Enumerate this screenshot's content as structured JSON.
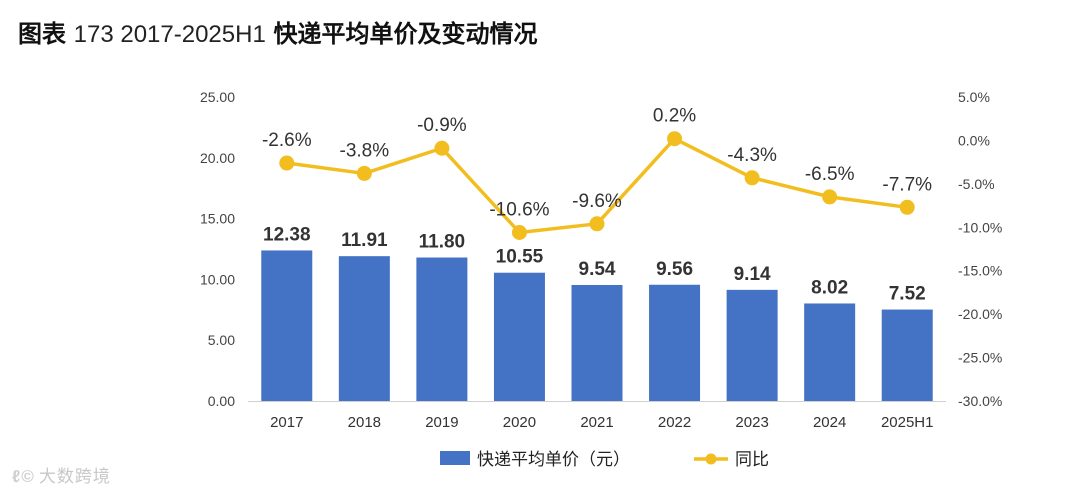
{
  "title": {
    "label": "图表",
    "number": "173 2017-2025H1",
    "text": "快递平均单价及变动情况"
  },
  "watermark": {
    "logo": "ℓ©",
    "text": "大数跨境"
  },
  "chart_data": {
    "type": "bar",
    "categories": [
      "2017",
      "2018",
      "2019",
      "2020",
      "2021",
      "2022",
      "2023",
      "2024",
      "2025H1"
    ],
    "series": [
      {
        "name": "快递平均单价（元）",
        "type": "bar",
        "axis": "left",
        "color": "#4472C4",
        "values": [
          12.38,
          11.91,
          11.8,
          10.55,
          9.54,
          9.56,
          9.14,
          8.02,
          7.52
        ],
        "labels": [
          "12.38",
          "11.91",
          "11.80",
          "10.55",
          "9.54",
          "9.56",
          "9.14",
          "8.02",
          "7.52"
        ]
      },
      {
        "name": "同比",
        "type": "line",
        "axis": "right",
        "color": "#F2BE1F",
        "values": [
          -2.6,
          -3.8,
          -0.9,
          -10.6,
          -9.6,
          0.2,
          -4.3,
          -6.5,
          -7.7
        ],
        "labels": [
          "-2.6%",
          "-3.8%",
          "-0.9%",
          "-10.6%",
          "-9.6%",
          "0.2%",
          "-4.3%",
          "-6.5%",
          "-7.7%"
        ]
      }
    ],
    "left_axis": {
      "ylim": [
        0,
        25
      ],
      "ticks": [
        0,
        5,
        10,
        15,
        20,
        25
      ],
      "tick_labels": [
        "0.00",
        "5.00",
        "10.00",
        "15.00",
        "20.00",
        "25.00"
      ]
    },
    "right_axis": {
      "ylim": [
        -30,
        5
      ],
      "ticks": [
        -30,
        -25,
        -20,
        -15,
        -10,
        -5,
        0,
        5
      ],
      "tick_labels": [
        "-30.0%",
        "-25.0%",
        "-20.0%",
        "-15.0%",
        "-10.0%",
        "-5.0%",
        "0.0%",
        "5.0%"
      ]
    },
    "grid": false,
    "legend_position": "bottom-center"
  }
}
